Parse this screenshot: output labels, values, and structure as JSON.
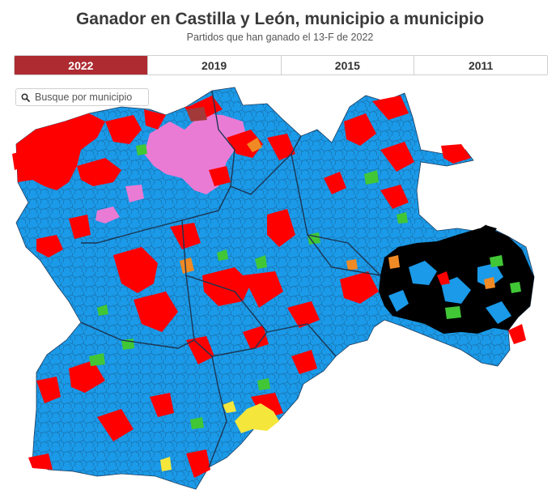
{
  "header": {
    "title": "Ganador en Castilla y León, municipio a municipio",
    "subtitle": "Partidos que han ganado el 13-F de 2022"
  },
  "tabs": [
    {
      "label": "2022",
      "active": true
    },
    {
      "label": "2019",
      "active": false
    },
    {
      "label": "2015",
      "active": false
    },
    {
      "label": "2011",
      "active": false
    }
  ],
  "search": {
    "placeholder": "Busque por municipio",
    "icon": "search-icon"
  },
  "colors": {
    "tab_active": "#ad2b31",
    "pp": "#1a9ae8",
    "psoe": "#ff0000",
    "vox": "#41c735",
    "upl": "#e97bd4",
    "teruel_existe": "#000000",
    "cs": "#f08a24",
    "xav": "#f5e63c"
  }
}
